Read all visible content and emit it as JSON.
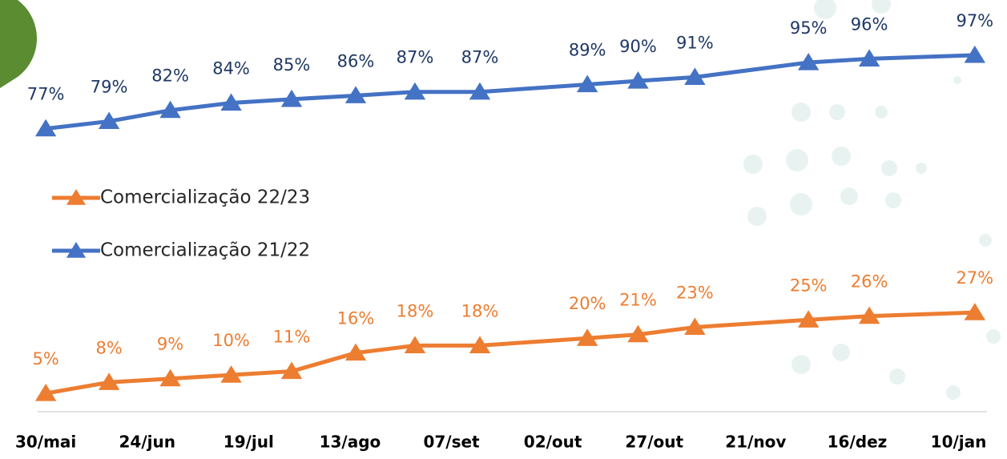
{
  "chart_data": {
    "type": "line",
    "x": [
      0,
      15.6,
      30.7,
      45.7,
      60.6,
      76.4,
      91,
      107,
      133.5,
      146,
      160,
      188,
      203,
      229
    ],
    "xlim": [
      -2,
      232
    ],
    "xticks": [
      {
        "value": 0,
        "label": "30/mai"
      },
      {
        "value": 25,
        "label": "24/jun"
      },
      {
        "value": 50,
        "label": "19/jul"
      },
      {
        "value": 75,
        "label": "13/ago"
      },
      {
        "value": 100,
        "label": "07/set"
      },
      {
        "value": 125,
        "label": "02/out"
      },
      {
        "value": 150,
        "label": "27/out"
      },
      {
        "value": 175,
        "label": "21/nov"
      },
      {
        "value": 200,
        "label": "16/dez"
      },
      {
        "value": 225,
        "label": "10/jan"
      }
    ],
    "ylim": [
      0,
      112
    ],
    "series": [
      {
        "name": "Comercialização 22/23",
        "color": "#ed7d31",
        "label_color": "#ed7d31",
        "values": [
          5,
          8,
          9,
          10,
          11,
          16,
          18,
          18,
          20,
          21,
          23,
          25,
          26,
          27
        ],
        "value_labels": [
          "5%",
          "8%",
          "9%",
          "10%",
          "11%",
          "16%",
          "18%",
          "18%",
          "20%",
          "21%",
          "23%",
          "25%",
          "26%",
          "27%"
        ]
      },
      {
        "name": "Comercialização 21/22",
        "color": "#4472c4",
        "label_color": "#1f3864",
        "values": [
          77,
          79,
          82,
          84,
          85,
          86,
          87,
          87,
          89,
          90,
          91,
          95,
          96,
          97
        ],
        "value_labels": [
          "77%",
          "79%",
          "82%",
          "84%",
          "85%",
          "86%",
          "87%",
          "87%",
          "89%",
          "90%",
          "91%",
          "95%",
          "96%",
          "97%"
        ]
      }
    ]
  }
}
